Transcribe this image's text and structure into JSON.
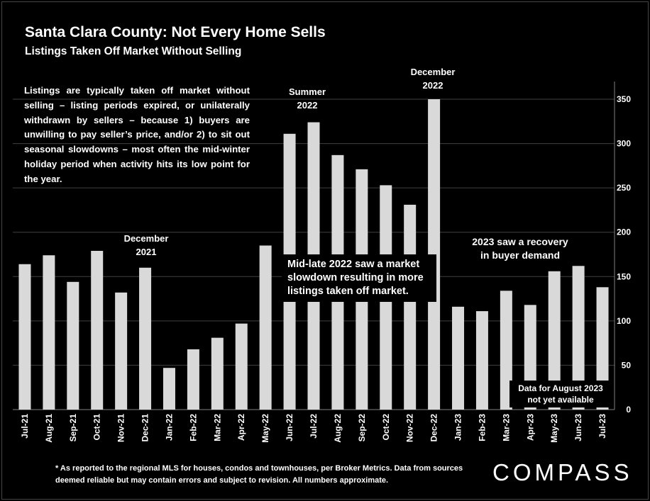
{
  "title": "Santa Clara County: Not Every Home Sells",
  "subtitle": "Listings Taken Off Market Without Selling",
  "intro_text": "Listings are typically taken off market without selling – listing periods expired, or unilaterally withdrawn by sellers – because 1) buyers are unwilling to pay seller’s price, and/or 2) to sit out seasonal slowdowns – most often the mid-winter holiday period when activity hits its low point for the year.",
  "annotations": {
    "dec2021": [
      "December",
      "2021"
    ],
    "summer2022": [
      "Summer",
      "2022"
    ],
    "dec2022": [
      "December",
      "2022"
    ],
    "slowdown": [
      "Mid-late 2022 saw a market",
      "slowdown resulting in more",
      "listings taken off market."
    ],
    "recovery": [
      "2023 saw a recovery",
      "in buyer demand"
    ],
    "august": [
      "Data for August 2023",
      "not yet available"
    ]
  },
  "footnote": "* As reported to the regional MLS for houses, condos and townhouses, per Broker Metrics. Data from sources deemed reliable but may contain errors and subject to revision. All numbers approximate.",
  "logo": "COMPASS",
  "colors": {
    "background": "#000000",
    "bar": "#d9d9d9",
    "grid": "#404040",
    "text": "#ffffff"
  },
  "chart_data": {
    "type": "bar",
    "categories": [
      "Jul-21",
      "Aug-21",
      "Sep-21",
      "Oct-21",
      "Nov-21",
      "Dec-21",
      "Jan-22",
      "Feb-22",
      "Mar-22",
      "Apr-22",
      "May-22",
      "Jun-22",
      "Jul-22",
      "Aug-22",
      "Sep-22",
      "Oct-22",
      "Nov-22",
      "Dec-22",
      "Jan-23",
      "Feb-23",
      "Mar-23",
      "Apr-23",
      "May-23",
      "Jun-23",
      "Jul-23"
    ],
    "values": [
      164,
      174,
      144,
      179,
      132,
      160,
      47,
      68,
      81,
      97,
      185,
      311,
      324,
      287,
      271,
      253,
      231,
      350,
      116,
      111,
      134,
      118,
      156,
      162,
      138
    ],
    "title": "",
    "xlabel": "",
    "ylabel": "",
    "ylim": [
      0,
      350
    ],
    "yticks": [
      0,
      50,
      100,
      150,
      200,
      250,
      300,
      350
    ],
    "y_axis_side": "right",
    "grid": true
  }
}
